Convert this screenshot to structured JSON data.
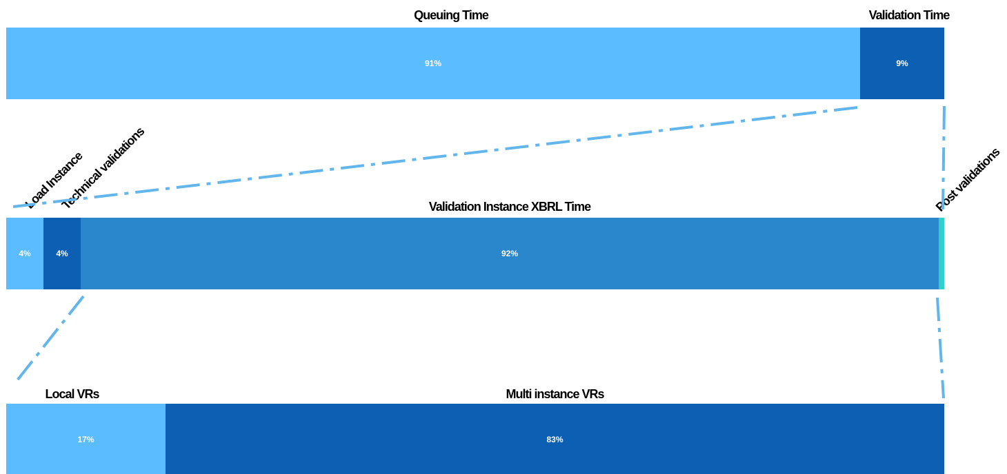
{
  "chart_data": [
    {
      "type": "bar",
      "orientation": "horizontal-stacked-100",
      "segments": [
        {
          "name": "Queuing Time",
          "value": 91,
          "label": "91%",
          "color": "#5bbdff"
        },
        {
          "name": "Validation Time",
          "value": 9,
          "label": "9%",
          "color": "#0c5fb3"
        }
      ]
    },
    {
      "type": "bar",
      "orientation": "horizontal-stacked-100",
      "segments": [
        {
          "name": "Load Instance",
          "value": 4,
          "label": "4%",
          "color": "#5bbdff"
        },
        {
          "name": "Technical validations",
          "value": 4,
          "label": "4%",
          "color": "#0c5fb3"
        },
        {
          "name": "Validation Instance XBRL Time",
          "value": 92,
          "label": "92%",
          "color": "#2a87cc"
        },
        {
          "name": "Post validations",
          "value": 0.6,
          "label": "",
          "color": "#2ed0c8"
        }
      ]
    },
    {
      "type": "bar",
      "orientation": "horizontal-stacked-100",
      "segments": [
        {
          "name": "Local VRs",
          "value": 17,
          "label": "17%",
          "color": "#5bbdff"
        },
        {
          "name": "Multi instance VRs",
          "value": 83,
          "label": "83%",
          "color": "#0c5fb3"
        }
      ]
    }
  ],
  "connector_color": "#62b6ec"
}
